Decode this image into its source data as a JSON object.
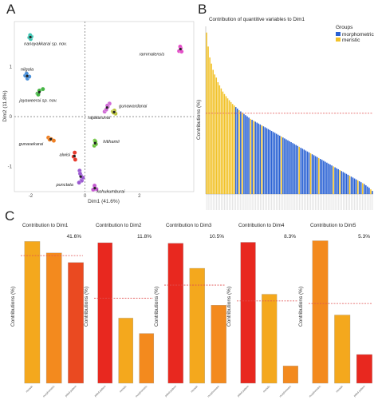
{
  "panels": {
    "a": "A",
    "b": "B",
    "c": "C"
  },
  "chart_data": [
    {
      "type": "scatter",
      "xlabel": "Dim1 (41.6%)",
      "ylabel": "Dim2 (11.8%)",
      "xlim": [
        -2.6,
        4.0
      ],
      "ylim": [
        -1.5,
        1.9
      ],
      "xticks": [
        "-2",
        "0",
        "2"
      ],
      "yticks": [
        "1",
        "0",
        "-1"
      ],
      "groups": [
        {
          "name": "nanayakkarai sp. nov.",
          "color": "#3fc6b4",
          "points": [
            [
              -2.05,
              1.58
            ],
            [
              -2.0,
              1.55
            ],
            [
              -1.97,
              1.6
            ],
            [
              -2.02,
              1.63
            ]
          ],
          "center": [
            -2.01,
            1.59
          ]
        },
        {
          "name": "nilgala",
          "color": "#4a90d9",
          "points": [
            [
              -2.2,
              0.82
            ],
            [
              -2.12,
              0.76
            ],
            [
              -2.05,
              0.8
            ],
            [
              -2.15,
              0.86
            ]
          ],
          "center": [
            -2.13,
            0.81
          ]
        },
        {
          "name": "jayaweerai sp. nov.",
          "color": "#46b545",
          "points": [
            [
              -1.75,
              0.46
            ],
            [
              -1.68,
              0.52
            ],
            [
              -1.55,
              0.55
            ],
            [
              -1.72,
              0.44
            ]
          ],
          "center": [
            -1.68,
            0.49
          ]
        },
        {
          "name": "gunasekarai",
          "color": "#ef7f22",
          "points": [
            [
              -1.35,
              -0.42
            ],
            [
              -1.25,
              -0.45
            ],
            [
              -1.15,
              -0.48
            ],
            [
              -1.3,
              -0.46
            ]
          ],
          "center": [
            -1.26,
            -0.45
          ]
        },
        {
          "name": "alwisi",
          "color": "#e83a2c",
          "points": [
            [
              -0.42,
              -0.8
            ],
            [
              -0.38,
              -0.72
            ],
            [
              -0.36,
              -0.86
            ]
          ],
          "center": [
            -0.39,
            -0.79
          ]
        },
        {
          "name": "punctata",
          "color": "#9b59d1",
          "points": [
            [
              -0.2,
              -1.08
            ],
            [
              -0.15,
              -1.18
            ],
            [
              -0.12,
              -1.28
            ],
            [
              -0.22,
              -1.32
            ],
            [
              -0.08,
              -1.22
            ],
            [
              -0.18,
              -1.14
            ]
          ],
          "center": [
            -0.16,
            -1.2
          ]
        },
        {
          "name": "kohukumburai",
          "color": "#c45bd1",
          "points": [
            [
              0.35,
              -1.38
            ],
            [
              0.42,
              -1.45
            ],
            [
              0.3,
              -1.46
            ]
          ],
          "center": [
            0.36,
            -1.43
          ]
        },
        {
          "name": "hitihamii",
          "color": "#6ac33b",
          "points": [
            [
              0.36,
              -0.48
            ],
            [
              0.34,
              -0.58
            ],
            [
              0.4,
              -0.55
            ],
            [
              0.38,
              -0.5
            ]
          ],
          "center": [
            0.37,
            -0.53
          ]
        },
        {
          "name": "gunawardanai",
          "color": "#b9c234",
          "points": [
            [
              1.02,
              0.1
            ],
            [
              1.08,
              0.12
            ],
            [
              1.12,
              0.06
            ],
            [
              1.05,
              0.08
            ]
          ],
          "center": [
            1.07,
            0.09
          ]
        },
        {
          "name": "rajakarunai",
          "color": "#d06bd6",
          "points": [
            [
              0.72,
              0.1
            ],
            [
              0.78,
              0.14
            ],
            [
              0.84,
              0.2
            ],
            [
              0.9,
              0.26
            ],
            [
              0.82,
              0.22
            ]
          ],
          "center": [
            0.81,
            0.18
          ]
        },
        {
          "name": "rammalensis",
          "color": "#e450c9",
          "points": [
            [
              3.46,
              1.31
            ],
            [
              3.52,
              1.37
            ],
            [
              3.55,
              1.3
            ],
            [
              3.5,
              1.4
            ]
          ],
          "center": [
            3.51,
            1.35
          ]
        }
      ]
    },
    {
      "type": "bar",
      "title": "Contribution of quantitive variables to Dim1",
      "ylabel": "Contributions (%)",
      "legend": {
        "title": "Groups",
        "items": [
          "morphometric",
          "meristic"
        ],
        "position": "top-right"
      },
      "colors": {
        "morphometric": "#2a62d4",
        "meristic": "#f2c229",
        "reference": "#e05050"
      },
      "ylim": [
        0,
        5.4
      ],
      "reference": 2.6,
      "values": [
        5.2,
        4.75,
        4.4,
        4.2,
        4.0,
        3.85,
        3.75,
        3.6,
        3.5,
        3.4,
        3.3,
        3.22,
        3.15,
        3.08,
        3.02,
        2.96,
        2.9,
        2.85,
        2.8,
        2.75,
        2.7,
        2.66,
        2.62,
        2.58,
        2.54,
        2.5,
        2.46,
        2.42,
        2.39,
        2.36,
        2.33,
        2.3,
        2.27,
        2.24,
        2.21,
        2.18,
        2.15,
        2.12,
        2.09,
        2.06,
        2.03,
        2.0,
        1.97,
        1.94,
        1.91,
        1.88,
        1.85,
        1.82,
        1.79,
        1.76,
        1.73,
        1.7,
        1.67,
        1.64,
        1.61,
        1.58,
        1.55,
        1.52,
        1.49,
        1.46,
        1.43,
        1.4,
        1.37,
        1.34,
        1.31,
        1.28,
        1.25,
        1.22,
        1.19,
        1.16,
        1.13,
        1.1,
        1.07,
        1.04,
        1.01,
        0.98,
        0.95,
        0.92,
        0.89,
        0.86,
        0.83,
        0.8,
        0.77,
        0.74,
        0.71,
        0.68,
        0.65,
        0.62,
        0.59,
        0.56,
        0.53,
        0.5,
        0.47,
        0.44,
        0.41,
        0.38,
        0.35,
        0.32,
        0.28,
        0.24,
        0.2,
        0.15,
        0.1
      ],
      "groups": [
        "meristic",
        "meristic",
        "meristic",
        "meristic",
        "meristic",
        "meristic",
        "meristic",
        "meristic",
        "meristic",
        "meristic",
        "meristic",
        "meristic",
        "meristic",
        "meristic",
        "meristic",
        "meristic",
        "meristic",
        "meristic",
        "morphometric",
        "morphometric",
        "meristic",
        "morphometric",
        "meristic",
        "morphometric",
        "morphometric",
        "morphometric",
        "morphometric",
        "meristic",
        "morphometric",
        "meristic",
        "morphometric",
        "morphometric",
        "morphometric",
        "morphometric",
        "meristic",
        "morphometric",
        "morphometric",
        "morphometric",
        "morphometric",
        "morphometric",
        "morphometric",
        "morphometric",
        "morphometric",
        "morphometric",
        "morphometric",
        "morphometric",
        "meristic",
        "morphometric",
        "morphometric",
        "morphometric",
        "morphometric",
        "morphometric",
        "morphometric",
        "morphometric",
        "morphometric",
        "morphometric",
        "morphometric",
        "meristic",
        "morphometric",
        "morphometric",
        "morphometric",
        "morphometric",
        "morphometric",
        "morphometric",
        "meristic",
        "morphometric",
        "morphometric",
        "morphometric",
        "morphometric",
        "meristic",
        "morphometric",
        "morphometric",
        "morphometric",
        "morphometric",
        "morphometric",
        "morphometric",
        "morphometric",
        "morphometric",
        "meristic",
        "morphometric",
        "morphometric",
        "morphometric",
        "meristic",
        "morphometric",
        "morphometric",
        "morphometric",
        "morphometric",
        "morphometric",
        "meristic",
        "morphometric",
        "morphometric",
        "morphometric",
        "morphometric",
        "meristic",
        "morphometric",
        "morphometric",
        "meristic",
        "morphometric",
        "morphometric",
        "morphometric",
        "morphometric",
        "meristic",
        "morphometric"
      ]
    },
    {
      "type": "bar",
      "title": "Contribution to Dim1",
      "percent": "41.6%",
      "ylabel": "Contributions (%)",
      "ylim": [
        0,
        40
      ],
      "reference": 33.3,
      "categories": [
        "meristic",
        "morphometric",
        "pitted pattern"
      ],
      "values": [
        37.0,
        34.0,
        31.5
      ],
      "colors": [
        "#f4a81d",
        "#f38a1e",
        "#ea4a21"
      ]
    },
    {
      "type": "bar",
      "title": "Contribution to Dim2",
      "percent": "11.8%",
      "ylabel": "Contributions (%)",
      "ylim": [
        0,
        60
      ],
      "reference": 33.3,
      "categories": [
        "pitted pattern",
        "meristic",
        "morphometric"
      ],
      "values": [
        55.0,
        25.5,
        19.5
      ],
      "colors": [
        "#e8281f",
        "#f4a81d",
        "#f38a1e"
      ]
    },
    {
      "type": "bar",
      "title": "Contribution to Dim3",
      "percent": "10.5%",
      "ylabel": "Contributions (%)",
      "ylim": [
        0,
        52
      ],
      "reference": 33.3,
      "categories": [
        "pitted pattern",
        "meristic",
        "morphometric"
      ],
      "values": [
        47.5,
        39.0,
        26.5
      ],
      "colors": [
        "#e8281f",
        "#f4a81d",
        "#f38a1e"
      ]
    },
    {
      "type": "bar",
      "title": "Contribution to Dim4",
      "percent": "8.3%",
      "ylabel": "Contributions (%)",
      "ylim": [
        0,
        62
      ],
      "reference": 33.3,
      "categories": [
        "pitted pattern",
        "meristic",
        "morphometric"
      ],
      "values": [
        57.0,
        36.0,
        7.0
      ],
      "colors": [
        "#e8281f",
        "#f4a81d",
        "#f38a1e"
      ]
    },
    {
      "type": "bar",
      "title": "Contribution to Dim5",
      "percent": "5.3%",
      "ylabel": "Contributions (%)",
      "ylim": [
        0,
        64
      ],
      "reference": 33.3,
      "categories": [
        "morphometric",
        "meristic",
        "pitted pattern"
      ],
      "values": [
        59.5,
        28.5,
        12.0
      ],
      "colors": [
        "#f38a1e",
        "#f4a81d",
        "#e8281f"
      ]
    }
  ]
}
